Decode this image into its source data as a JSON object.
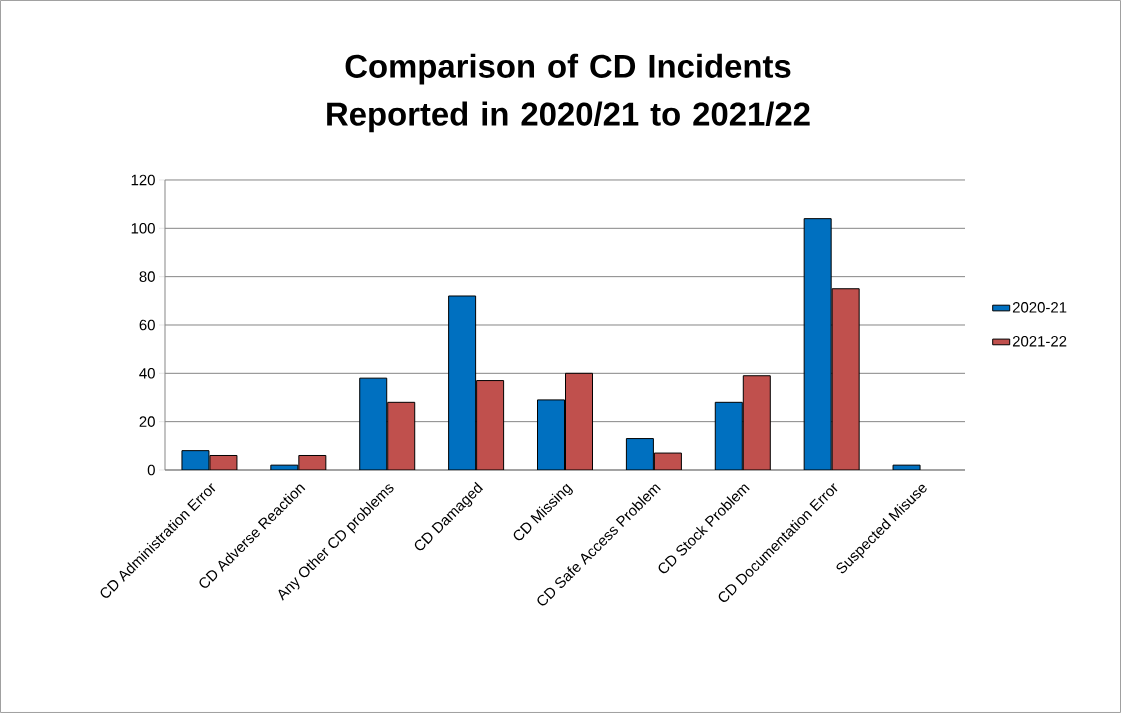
{
  "chart_data": {
    "type": "bar",
    "title": "Comparison of CD Incidents Reported in 2020/21 to 2021/22",
    "categories": [
      "CD Administration Error",
      "CD Adverse Reaction",
      "Any Other CD problems",
      "CD Damaged",
      "CD Missing",
      "CD Safe Access Problem",
      "CD Stock Problem",
      "CD Documentation Error",
      "Suspected Misuse"
    ],
    "series": [
      {
        "name": "2020-21",
        "color": "#0070c0",
        "values": [
          8,
          2,
          38,
          72,
          29,
          13,
          28,
          104,
          2
        ]
      },
      {
        "name": "2021-22",
        "color": "#c0504d",
        "values": [
          6,
          6,
          28,
          37,
          40,
          7,
          39,
          75,
          null
        ]
      }
    ],
    "ylim": [
      0,
      120
    ],
    "yticks": [
      0,
      20,
      40,
      60,
      80,
      100,
      120
    ],
    "grid": "y",
    "legend": "right"
  }
}
